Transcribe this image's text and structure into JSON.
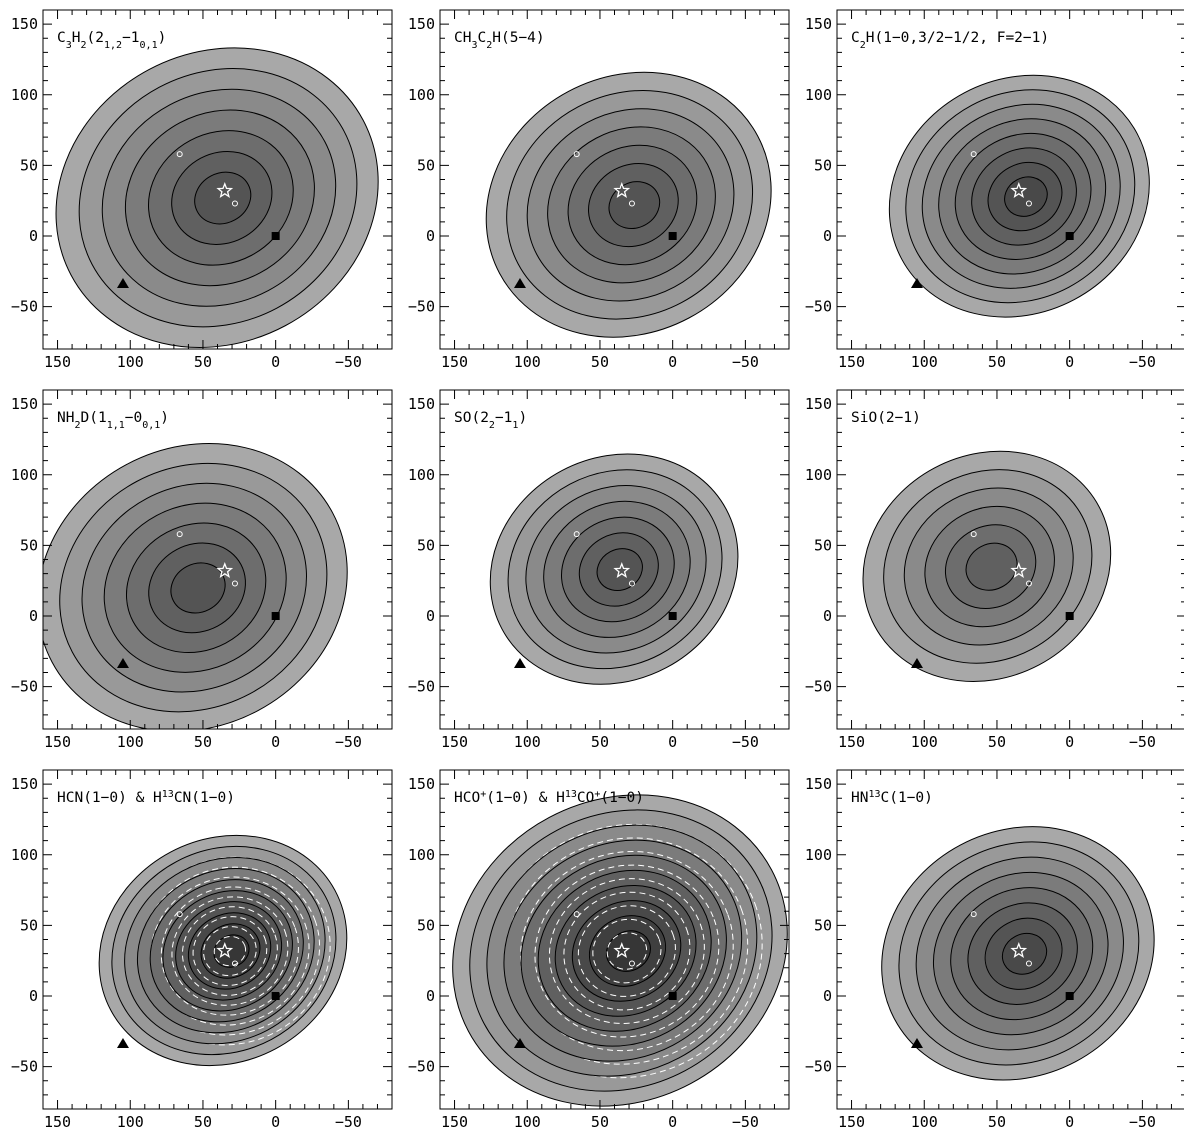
{
  "chart_data": {
    "type": "contour",
    "grid": false,
    "xlim": [
      160,
      -80
    ],
    "ylim": [
      -80,
      160
    ],
    "x_ticks": [
      150,
      100,
      50,
      0,
      -50
    ],
    "y_ticks": [
      150,
      100,
      50,
      0,
      -50
    ],
    "x_tick_labels": [
      "150",
      "100",
      "50",
      "0",
      "−50"
    ],
    "y_tick_labels": [
      "150",
      "100",
      "50",
      "0",
      "−50"
    ],
    "markers": [
      {
        "name": "star",
        "x": 35,
        "y": 32
      },
      {
        "name": "open-circle",
        "x": 66,
        "y": 58
      },
      {
        "name": "open-circle",
        "x": 28,
        "y": 23
      },
      {
        "name": "filled-square",
        "x": 0,
        "y": 0
      },
      {
        "name": "filled-triangle",
        "x": 105,
        "y": -34
      }
    ],
    "panels": [
      {
        "id": "c3h2",
        "title_segments": [
          [
            "C",
            ""
          ],
          [
            "3",
            "sub"
          ],
          [
            "H",
            ""
          ],
          [
            "2",
            "sub"
          ],
          [
            "(2",
            ""
          ],
          [
            "1,2",
            "sub"
          ],
          [
            "−1",
            ""
          ],
          [
            "0,1",
            "sub"
          ],
          [
            ")",
            ""
          ]
        ],
        "peak": {
          "x": 38,
          "y": 27
        },
        "spread": 1.25,
        "levels": 7,
        "dashed": false
      },
      {
        "id": "ch3c2h",
        "title_segments": [
          [
            "CH",
            ""
          ],
          [
            "3",
            "sub"
          ],
          [
            "C",
            ""
          ],
          [
            "2",
            "sub"
          ],
          [
            "H(5−4)",
            ""
          ]
        ],
        "peak": {
          "x": 28,
          "y": 22
        },
        "spread": 1.1,
        "levels": 7,
        "dashed": false
      },
      {
        "id": "c2h",
        "title_segments": [
          [
            "C",
            ""
          ],
          [
            "2",
            "sub"
          ],
          [
            "H(1−0,3/2−1/2, F=2−1)",
            ""
          ]
        ],
        "peak": {
          "x": 32,
          "y": 28
        },
        "spread": 1.0,
        "levels": 8,
        "dashed": false
      },
      {
        "id": "nh2d",
        "title_segments": [
          [
            "NH",
            ""
          ],
          [
            "2",
            "sub"
          ],
          [
            "D(1",
            ""
          ],
          [
            "1,1",
            "sub"
          ],
          [
            "−0",
            ""
          ],
          [
            "0,1",
            "sub"
          ],
          [
            ")",
            ""
          ]
        ],
        "peak": {
          "x": 55,
          "y": 20
        },
        "spread": 1.2,
        "levels": 7,
        "dashed": false
      },
      {
        "id": "so",
        "title_segments": [
          [
            "SO(2",
            ""
          ],
          [
            "2",
            "sub"
          ],
          [
            "−1",
            ""
          ],
          [
            "1",
            "sub"
          ],
          [
            ")",
            ""
          ]
        ],
        "peak": {
          "x": 38,
          "y": 33
        },
        "spread": 0.95,
        "levels": 7,
        "dashed": false
      },
      {
        "id": "sio",
        "title_segments": [
          [
            "SiO(2−1)",
            ""
          ]
        ],
        "peak": {
          "x": 55,
          "y": 35
        },
        "spread": 0.95,
        "levels": 6,
        "dashed": false
      },
      {
        "id": "hcn",
        "title_segments": [
          [
            "HCN(1−0) & H",
            ""
          ],
          [
            "13",
            "sup"
          ],
          [
            "CN(1−0)",
            ""
          ]
        ],
        "peak": {
          "x": 33,
          "y": 32
        },
        "spread": 0.95,
        "levels": 10,
        "dashed": true
      },
      {
        "id": "hcoplus",
        "title_segments": [
          [
            "HCO",
            ""
          ],
          [
            "+",
            "sup"
          ],
          [
            "(1−0) & H",
            ""
          ],
          [
            "13",
            "sup"
          ],
          [
            "CO",
            ""
          ],
          [
            "+",
            "sup"
          ],
          [
            "(1−0)",
            ""
          ]
        ],
        "peak": {
          "x": 33,
          "y": 32
        },
        "spread": 1.3,
        "levels": 10,
        "dashed": true
      },
      {
        "id": "hn13c",
        "title_segments": [
          [
            "HN",
            ""
          ],
          [
            "13",
            "sup"
          ],
          [
            "C(1−0)",
            ""
          ]
        ],
        "peak": {
          "x": 33,
          "y": 30
        },
        "spread": 1.05,
        "levels": 8,
        "dashed": false
      }
    ]
  }
}
